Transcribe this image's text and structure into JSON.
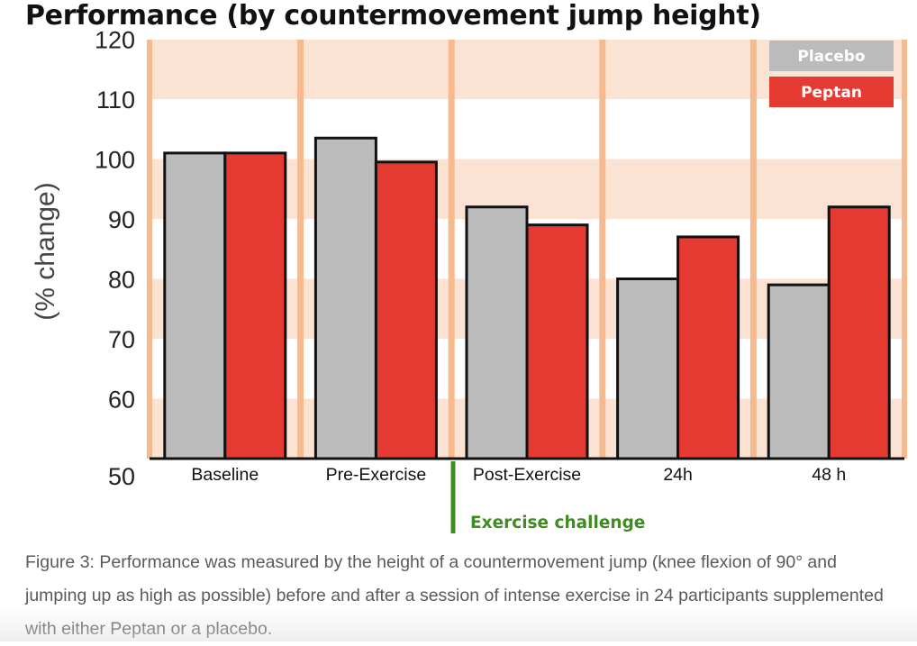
{
  "colors": {
    "placebo": "#bbbbbb",
    "peptan": "#e53a32",
    "band": "#fbe3d3",
    "divider": "#f7b98e",
    "challenge": "#3f8c22"
  },
  "challenge_label": "Exercise challenge",
  "caption": "Figure 3: Performance was measured by the height of a countermovement jump (knee flexion of 90° and jumping up as high as possible) before and after a session of intense exercise in 24 participants supplemented with either Peptan or a placebo.",
  "chart_data": {
    "type": "bar",
    "title": "Performance (by countermovement jump height)",
    "xlabel": "",
    "ylabel": "(% change)",
    "ylim": [
      50,
      122
    ],
    "yticks": [
      50,
      60,
      70,
      80,
      90,
      100,
      110,
      120
    ],
    "categories": [
      "Baseline",
      "Pre-Exercise",
      "Post-Exercise",
      "24h",
      "48 h"
    ],
    "series": [
      {
        "name": "Placebo",
        "values": [
          101,
          103.5,
          92,
          80,
          79
        ]
      },
      {
        "name": "Peptan",
        "values": [
          101,
          99.5,
          89,
          87,
          92
        ]
      }
    ],
    "legend_position": "top-right"
  }
}
